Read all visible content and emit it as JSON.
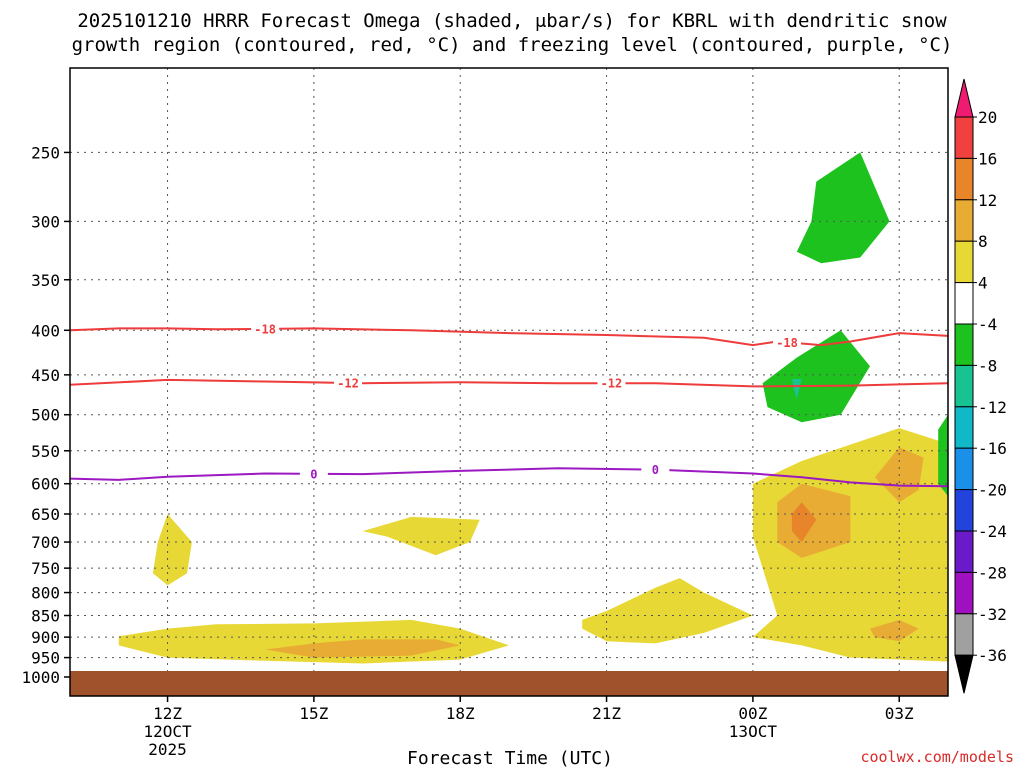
{
  "title_lines": [
    "2025101210 HRRR Forecast Omega (shaded, μbar/s) for KBRL with dendritic snow",
    "growth region (contoured, red, °C) and freezing level (contoured, purple, °C)"
  ],
  "credit": "coolwx.com/models",
  "chart_data": {
    "type": "contour",
    "title": "2025101210 HRRR Forecast Omega (shaded, μbar/s) for KBRL with dendritic snow growth region (contoured, red, °C) and freezing level (contoured, purple, °C)",
    "xlabel": "Forecast Time (UTC)",
    "ylabel": "",
    "x_ticks": [
      {
        "label": "12Z",
        "sub": [
          "12OCT",
          "2025"
        ],
        "hour": 12
      },
      {
        "label": "15Z",
        "sub": [],
        "hour": 15
      },
      {
        "label": "18Z",
        "sub": [],
        "hour": 18
      },
      {
        "label": "21Z",
        "sub": [],
        "hour": 21
      },
      {
        "label": "00Z",
        "sub": [
          "13OCT"
        ],
        "hour": 24
      },
      {
        "label": "03Z",
        "sub": [],
        "hour": 27
      }
    ],
    "xlim": [
      10,
      28
    ],
    "y_ticks": [
      250,
      300,
      350,
      400,
      450,
      500,
      550,
      600,
      650,
      700,
      750,
      800,
      850,
      900,
      950,
      1000
    ],
    "ylim": [
      200,
      1000
    ],
    "y_scale": "log-pressure (inverted)",
    "grid": true,
    "colorbar": {
      "labels": [
        20,
        16,
        12,
        8,
        4,
        -4,
        -8,
        -12,
        -16,
        -20,
        -24,
        -28,
        -32,
        -36
      ],
      "colors": [
        "#ee1b70",
        "#f04040",
        "#e8842a",
        "#e8ac35",
        "#e8d835",
        "#ffffff",
        "#1ec21e",
        "#18c392",
        "#10b8c8",
        "#1a90e8",
        "#2244dd",
        "#6a1ac8",
        "#9e10c0",
        "#a0a0a0",
        "#000000"
      ]
    },
    "contours": [
      {
        "name": "-18",
        "color": "#ee3b3b",
        "label_positions": [
          14.0,
          24.7
        ],
        "points": [
          [
            10,
            400
          ],
          [
            11,
            398
          ],
          [
            12,
            398
          ],
          [
            13,
            399
          ],
          [
            15,
            398
          ],
          [
            17,
            400
          ],
          [
            19,
            403
          ],
          [
            21,
            405
          ],
          [
            23,
            408
          ],
          [
            24,
            416
          ],
          [
            24.5,
            412
          ],
          [
            25.4,
            416
          ],
          [
            26,
            412
          ],
          [
            27,
            403
          ],
          [
            28,
            406
          ]
        ]
      },
      {
        "name": "-12",
        "color": "#ee3b3b",
        "label_positions": [
          15.7,
          21.1
        ],
        "points": [
          [
            10,
            462
          ],
          [
            12,
            456
          ],
          [
            14,
            458
          ],
          [
            16,
            460
          ],
          [
            18,
            459
          ],
          [
            20,
            460
          ],
          [
            22,
            460
          ],
          [
            24,
            464
          ],
          [
            26,
            463
          ],
          [
            28,
            460
          ]
        ]
      },
      {
        "name": "0",
        "color": "#9c18c0",
        "label_positions": [
          15.0,
          22.0
        ],
        "points": [
          [
            10,
            592
          ],
          [
            11,
            594
          ],
          [
            12,
            589
          ],
          [
            14,
            584
          ],
          [
            16,
            585
          ],
          [
            18,
            580
          ],
          [
            20,
            576
          ],
          [
            22,
            578
          ],
          [
            24,
            584
          ],
          [
            25,
            590
          ],
          [
            26,
            598
          ],
          [
            27,
            603
          ],
          [
            28,
            604
          ]
        ]
      }
    ],
    "shaded_regions": [
      {
        "level": 8,
        "points": [
          [
            11,
            898
          ],
          [
            12,
            880
          ],
          [
            13,
            870
          ],
          [
            15,
            868
          ],
          [
            17,
            860
          ],
          [
            18,
            880
          ],
          [
            19,
            920
          ],
          [
            18,
            955
          ],
          [
            16,
            965
          ],
          [
            14,
            958
          ],
          [
            12,
            950
          ],
          [
            11,
            920
          ]
        ]
      },
      {
        "level": 12,
        "points": [
          [
            14,
            930
          ],
          [
            15,
            915
          ],
          [
            16,
            905
          ],
          [
            17.5,
            905
          ],
          [
            18,
            920
          ],
          [
            17,
            945
          ],
          [
            15,
            950
          ]
        ]
      },
      {
        "level": 8,
        "points": [
          [
            12,
            650
          ],
          [
            12.5,
            700
          ],
          [
            12.4,
            760
          ],
          [
            12,
            785
          ],
          [
            11.7,
            760
          ],
          [
            11.8,
            700
          ]
        ]
      },
      {
        "level": 8,
        "points": [
          [
            16,
            680
          ],
          [
            17,
            655
          ],
          [
            18.4,
            660
          ],
          [
            18.2,
            700
          ],
          [
            17.5,
            725
          ],
          [
            16.5,
            690
          ]
        ]
      },
      {
        "level": 8,
        "points": [
          [
            20.5,
            860
          ],
          [
            21,
            840
          ],
          [
            22,
            790
          ],
          [
            22.5,
            770
          ],
          [
            23,
            800
          ],
          [
            24,
            850
          ],
          [
            23,
            890
          ],
          [
            22,
            915
          ],
          [
            21,
            910
          ],
          [
            20.5,
            880
          ]
        ]
      },
      {
        "level": 8,
        "points": [
          [
            24,
            600
          ],
          [
            25,
            565
          ],
          [
            27,
            518
          ],
          [
            28,
            540
          ],
          [
            28,
            960
          ],
          [
            26,
            950
          ],
          [
            25,
            920
          ],
          [
            24,
            900
          ],
          [
            24.5,
            850
          ],
          [
            24.2,
            750
          ],
          [
            24,
            690
          ]
        ]
      },
      {
        "level": 12,
        "points": [
          [
            24.5,
            630
          ],
          [
            25,
            600
          ],
          [
            26,
            620
          ],
          [
            26,
            700
          ],
          [
            25,
            730
          ],
          [
            24.5,
            700
          ]
        ]
      },
      {
        "level": 16,
        "points": [
          [
            24.8,
            650
          ],
          [
            25,
            630
          ],
          [
            25.3,
            660
          ],
          [
            25,
            700
          ],
          [
            24.8,
            680
          ]
        ]
      },
      {
        "level": 12,
        "points": [
          [
            27,
            545
          ],
          [
            27.5,
            560
          ],
          [
            27.4,
            610
          ],
          [
            27,
            630
          ],
          [
            26.5,
            590
          ]
        ]
      },
      {
        "level": 12,
        "points": [
          [
            26.4,
            880
          ],
          [
            27,
            860
          ],
          [
            27.4,
            880
          ],
          [
            27,
            910
          ],
          [
            26.5,
            900
          ]
        ]
      },
      {
        "level": -4,
        "points": [
          [
            25.3,
            270
          ],
          [
            26.2,
            250
          ],
          [
            26.8,
            300
          ],
          [
            26.2,
            330
          ],
          [
            25.4,
            335
          ],
          [
            24.9,
            325
          ],
          [
            25.2,
            300
          ]
        ]
      },
      {
        "level": -4,
        "points": [
          [
            24.2,
            460
          ],
          [
            24.9,
            430
          ],
          [
            25.8,
            400
          ],
          [
            26.4,
            440
          ],
          [
            25.8,
            500
          ],
          [
            25,
            510
          ],
          [
            24.3,
            490
          ]
        ]
      },
      {
        "level": -8,
        "points": [
          [
            24.8,
            455
          ],
          [
            25,
            455
          ],
          [
            24.9,
            480
          ],
          [
            24.85,
            470
          ]
        ]
      },
      {
        "level": -4,
        "points": [
          [
            27.8,
            520
          ],
          [
            28,
            500
          ],
          [
            28,
            620
          ],
          [
            27.8,
            600
          ]
        ]
      },
      {
        "level": 4,
        "points": [
          [
            27.9,
            210
          ],
          [
            28,
            205
          ],
          [
            28,
            255
          ],
          [
            27.9,
            240
          ]
        ]
      }
    ]
  }
}
